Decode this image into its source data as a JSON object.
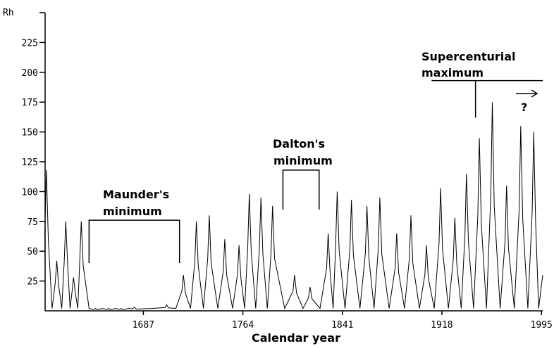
{
  "chart_data": {
    "type": "line",
    "ylabel": "Rh",
    "xlabel": "Calendar year",
    "xlim": [
      1611,
      1996
    ],
    "ylim": [
      0,
      250
    ],
    "grid": false,
    "y_ticks": [
      25,
      50,
      75,
      100,
      125,
      150,
      175,
      200,
      225
    ],
    "x_ticks": [
      1687,
      1764,
      1841,
      1918,
      1995
    ],
    "series": [
      {
        "peaks": [
          [
            1612,
            118
          ],
          [
            1620,
            42
          ],
          [
            1627,
            75
          ],
          [
            1633,
            28
          ],
          [
            1639,
            75
          ],
          [
            1650,
            2
          ],
          [
            1660,
            2
          ],
          [
            1670,
            2
          ],
          [
            1680,
            3
          ],
          [
            1705,
            5
          ],
          [
            1718,
            30
          ],
          [
            1728,
            75
          ],
          [
            1738,
            80
          ],
          [
            1750,
            60
          ],
          [
            1761,
            55
          ],
          [
            1769,
            98
          ],
          [
            1778,
            95
          ],
          [
            1787,
            88
          ],
          [
            1804,
            30
          ],
          [
            1816,
            20
          ],
          [
            1830,
            65
          ],
          [
            1837,
            100
          ],
          [
            1848,
            93
          ],
          [
            1860,
            88
          ],
          [
            1870,
            95
          ],
          [
            1883,
            65
          ],
          [
            1894,
            80
          ],
          [
            1906,
            55
          ],
          [
            1917,
            103
          ],
          [
            1928,
            78
          ],
          [
            1937,
            115
          ],
          [
            1947,
            145
          ],
          [
            1957,
            175
          ],
          [
            1968,
            105
          ],
          [
            1979,
            155
          ],
          [
            1989,
            150
          ]
        ]
      }
    ],
    "annotations": {
      "maunder": {
        "line1": "Maunder's",
        "line2": "minimum",
        "from": 1645,
        "to": 1715
      },
      "dalton": {
        "line1": "Dalton's",
        "line2": "minimum",
        "from": 1795,
        "to": 1823
      },
      "supercenturial": {
        "line1": "Supercenturial",
        "line2": "maximum",
        "at": 1944
      },
      "question": "?"
    }
  }
}
